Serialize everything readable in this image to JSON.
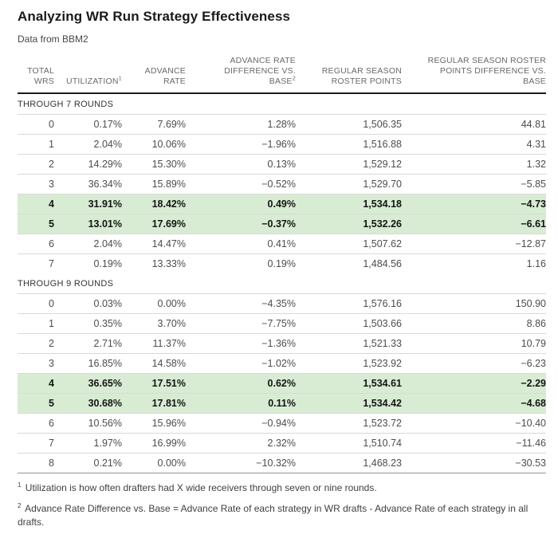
{
  "chart_data": {
    "type": "table",
    "title": "Analyzing WR Run Strategy Effectiveness",
    "subtitle": "Data from BBM2",
    "columns": [
      {
        "id": "total-wrs",
        "header_lines": [
          "TOTAL",
          "WRS"
        ],
        "sup": null
      },
      {
        "id": "utilization",
        "header_lines": [
          "UTILIZATION"
        ],
        "sup": "1"
      },
      {
        "id": "advance-rate",
        "header_lines": [
          "ADVANCE",
          "RATE"
        ],
        "sup": null
      },
      {
        "id": "advance-rate-difference-vs-base",
        "header_lines": [
          "ADVANCE RATE",
          "DIFFERENCE VS.",
          "BASE"
        ],
        "sup": "2"
      },
      {
        "id": "regular-season-roster-points",
        "header_lines": [
          "REGULAR SEASON",
          "ROSTER POINTS"
        ],
        "sup": null
      },
      {
        "id": "regular-season-roster-points-difference-vs-base",
        "header_lines": [
          "REGULAR SEASON ROSTER",
          "POINTS DIFFERENCE VS.",
          "BASE"
        ],
        "sup": null
      }
    ],
    "sections": [
      {
        "label": "THROUGH 7 ROUNDS",
        "rows": [
          {
            "highlight": false,
            "cells": [
              "0",
              "0.17%",
              "7.69%",
              "1.28%",
              "1,506.35",
              "44.81"
            ]
          },
          {
            "highlight": false,
            "cells": [
              "1",
              "2.04%",
              "10.06%",
              "−1.96%",
              "1,516.88",
              "4.31"
            ]
          },
          {
            "highlight": false,
            "cells": [
              "2",
              "14.29%",
              "15.30%",
              "0.13%",
              "1,529.12",
              "1.32"
            ]
          },
          {
            "highlight": false,
            "cells": [
              "3",
              "36.34%",
              "15.89%",
              "−0.52%",
              "1,529.70",
              "−5.85"
            ]
          },
          {
            "highlight": true,
            "cells": [
              "4",
              "31.91%",
              "18.42%",
              "0.49%",
              "1,534.18",
              "−4.73"
            ]
          },
          {
            "highlight": true,
            "cells": [
              "5",
              "13.01%",
              "17.69%",
              "−0.37%",
              "1,532.26",
              "−6.61"
            ]
          },
          {
            "highlight": false,
            "cells": [
              "6",
              "2.04%",
              "14.47%",
              "0.41%",
              "1,507.62",
              "−12.87"
            ]
          },
          {
            "highlight": false,
            "cells": [
              "7",
              "0.19%",
              "13.33%",
              "0.19%",
              "1,484.56",
              "1.16"
            ]
          }
        ]
      },
      {
        "label": "THROUGH 9 ROUNDS",
        "rows": [
          {
            "highlight": false,
            "cells": [
              "0",
              "0.03%",
              "0.00%",
              "−4.35%",
              "1,576.16",
              "150.90"
            ]
          },
          {
            "highlight": false,
            "cells": [
              "1",
              "0.35%",
              "3.70%",
              "−7.75%",
              "1,503.66",
              "8.86"
            ]
          },
          {
            "highlight": false,
            "cells": [
              "2",
              "2.71%",
              "11.37%",
              "−1.36%",
              "1,521.33",
              "10.79"
            ]
          },
          {
            "highlight": false,
            "cells": [
              "3",
              "16.85%",
              "14.58%",
              "−1.02%",
              "1,523.92",
              "−6.23"
            ]
          },
          {
            "highlight": true,
            "cells": [
              "4",
              "36.65%",
              "17.51%",
              "0.62%",
              "1,534.61",
              "−2.29"
            ]
          },
          {
            "highlight": true,
            "cells": [
              "5",
              "30.68%",
              "17.81%",
              "0.11%",
              "1,534.42",
              "−4.68"
            ]
          },
          {
            "highlight": false,
            "cells": [
              "6",
              "10.56%",
              "15.96%",
              "−0.94%",
              "1,523.72",
              "−10.40"
            ]
          },
          {
            "highlight": false,
            "cells": [
              "7",
              "1.97%",
              "16.99%",
              "2.32%",
              "1,510.74",
              "−11.46"
            ]
          },
          {
            "highlight": false,
            "cells": [
              "8",
              "0.21%",
              "0.00%",
              "−10.32%",
              "1,468.23",
              "−30.53"
            ]
          }
        ]
      }
    ],
    "footnotes": [
      {
        "sup": "1",
        "text": "Utilization is how often drafters had X wide receivers through seven or nine rounds."
      },
      {
        "sup": "2",
        "text": "Advance Rate Difference vs. Base = Advance Rate of each strategy in WR drafts - Advance Rate of each strategy in all drafts."
      }
    ],
    "colors": {
      "highlight_row_bg": "#d8ecd3",
      "header_rule": "#1a1a1a",
      "row_rule": "#d9d9d9",
      "table_bottom_rule": "#969696"
    },
    "layout_hints": {
      "grid": "horizontal-rules",
      "value_alignment": "right",
      "legend": false
    }
  }
}
